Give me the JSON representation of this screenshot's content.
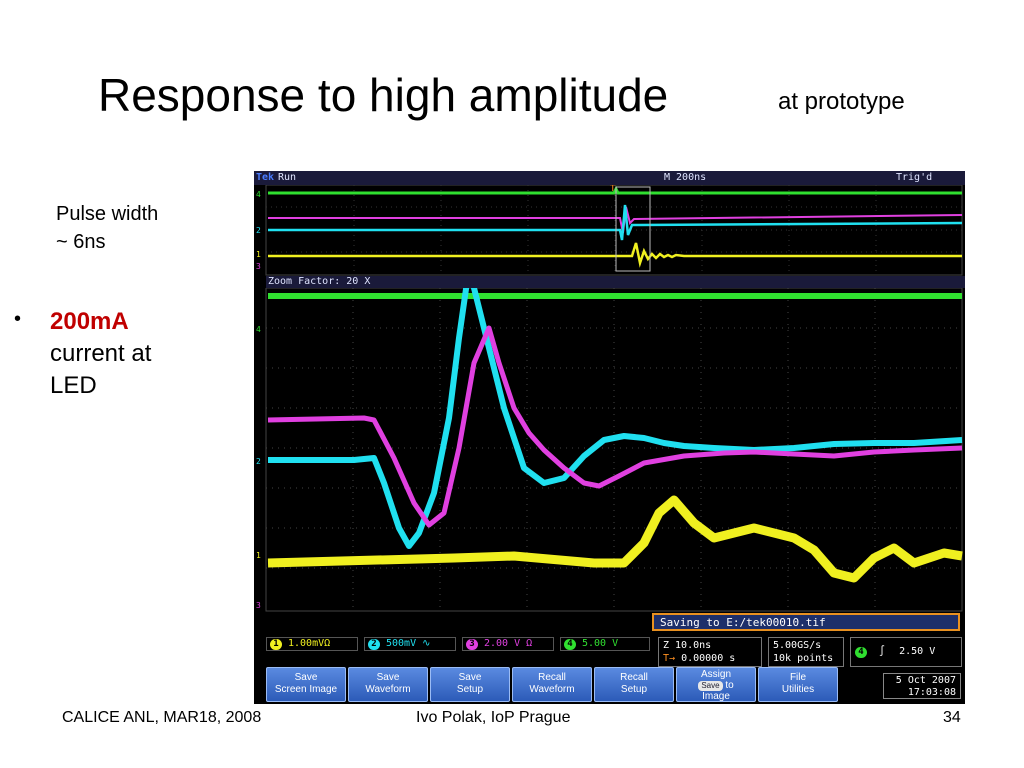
{
  "slide": {
    "title": "Response to high amplitude",
    "subtitle": "at prototype",
    "note_line1": "Pulse width",
    "note_line2": "~ 6ns",
    "bullet_symbol": "•",
    "bullet_highlight": "200mA",
    "bullet_line2": "current at",
    "bullet_line3": "LED",
    "footer_left": "CALICE ANL, MAR18, 2008",
    "footer_center": "Ivo Polak, IoP Prague",
    "page_number": "34"
  },
  "scope": {
    "brand": "Tek",
    "run_state": "Run",
    "timebase": "M 200ns",
    "trigger_state": "Trig'd",
    "zoom_label": "Zoom Factor: 20 X",
    "saving_msg": "Saving to E:/tek00010.tif",
    "channels": [
      {
        "num": "1",
        "scale": "1.00mVΩ",
        "color": "#f0f020"
      },
      {
        "num": "2",
        "scale": "500mV ∿",
        "color": "#20e0f0"
      },
      {
        "num": "3",
        "scale": "2.00 V Ω",
        "color": "#e040e0"
      },
      {
        "num": "4",
        "scale": "5.00 V",
        "color": "#30e030"
      }
    ],
    "zoom_time": "Z 10.0ns",
    "zoom_pos": "0.00000 s",
    "sample_rate": "5.00GS/s",
    "record_length": "10k points",
    "trigger_channel": "4",
    "trigger_slope": "∫",
    "trigger_level": "2.50 V",
    "date": "5 Oct  2007",
    "time": "17:03:08",
    "buttons": [
      {
        "line1": "Save",
        "line2": "Screen Image"
      },
      {
        "line1": "Save",
        "line2": "Waveform"
      },
      {
        "line1": "Save",
        "line2": "Setup"
      },
      {
        "line1": "Recall",
        "line2": "Waveform"
      },
      {
        "line1": "Recall",
        "line2": "Setup"
      },
      {
        "line1": "Assign",
        "chip": "Save",
        "line2": "to",
        "line3": "Image"
      },
      {
        "line1": "File",
        "line2": "Utilities"
      }
    ]
  }
}
